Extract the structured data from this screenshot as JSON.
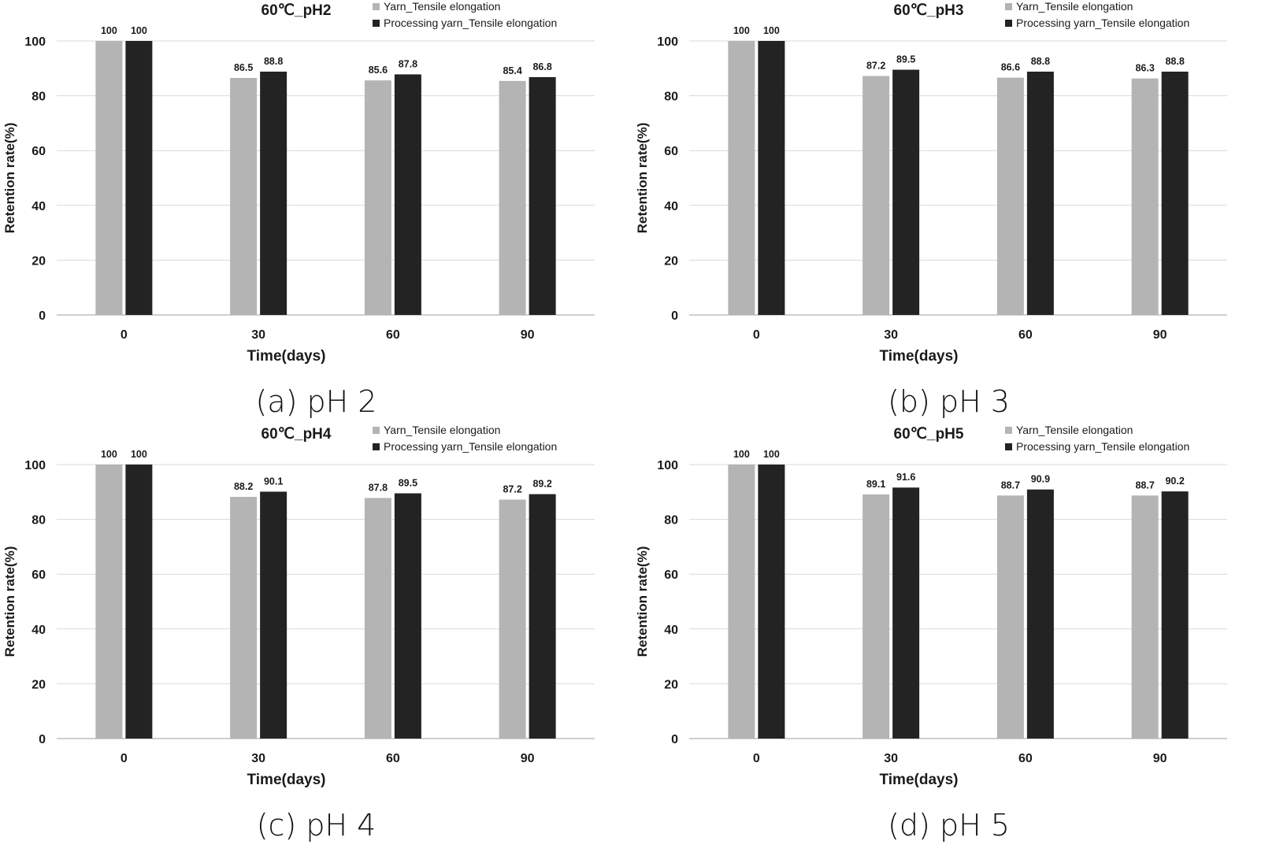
{
  "colors": {
    "yarn": "#b4b4b4",
    "processing": "#232323",
    "grid": "#d9d9d9",
    "axis": "#bfbfbf",
    "text": "#1a1a1a"
  },
  "chart_data": [
    {
      "type": "bar",
      "title": "60℃_pH2",
      "caption": "(a) pH 2",
      "xlabel": "Time(days)",
      "ylabel": "Retention rate(%)",
      "categories": [
        "0",
        "30",
        "60",
        "90"
      ],
      "ylim": [
        0,
        100
      ],
      "yticks": [
        "0",
        "20",
        "40",
        "60",
        "80",
        "100"
      ],
      "grid": true,
      "legend_position": "top-right",
      "series": [
        {
          "name": "Yarn_Tensile elongation",
          "values": [
            100,
            86.5,
            85.6,
            85.4
          ]
        },
        {
          "name": "Processing yarn_Tensile elongation",
          "values": [
            100,
            88.8,
            87.8,
            86.8
          ]
        }
      ]
    },
    {
      "type": "bar",
      "title": "60℃_pH3",
      "caption": "(b) pH 3",
      "xlabel": "Time(days)",
      "ylabel": "Retention rate(%)",
      "categories": [
        "0",
        "30",
        "60",
        "90"
      ],
      "ylim": [
        0,
        100
      ],
      "yticks": [
        "0",
        "20",
        "40",
        "60",
        "80",
        "100"
      ],
      "grid": true,
      "legend_position": "top-right",
      "series": [
        {
          "name": "Yarn_Tensile elongation",
          "values": [
            100,
            87.2,
            86.6,
            86.3
          ]
        },
        {
          "name": "Processing yarn_Tensile elongation",
          "values": [
            100,
            89.5,
            88.8,
            88.8
          ]
        }
      ]
    },
    {
      "type": "bar",
      "title": "60℃_pH4",
      "caption": "(c) pH 4",
      "xlabel": "Time(days)",
      "ylabel": "Retention rate(%)",
      "categories": [
        "0",
        "30",
        "60",
        "90"
      ],
      "ylim": [
        0,
        100
      ],
      "yticks": [
        "0",
        "20",
        "40",
        "60",
        "80",
        "100"
      ],
      "grid": true,
      "legend_position": "top-right",
      "series": [
        {
          "name": "Yarn_Tensile elongation",
          "values": [
            100,
            88.2,
            87.8,
            87.2
          ]
        },
        {
          "name": "Processing yarn_Tensile elongation",
          "values": [
            100,
            90.1,
            89.5,
            89.2
          ]
        }
      ]
    },
    {
      "type": "bar",
      "title": "60℃_pH5",
      "caption": "(d) pH 5",
      "xlabel": "Time(days)",
      "ylabel": "Retention rate(%)",
      "categories": [
        "0",
        "30",
        "60",
        "90"
      ],
      "ylim": [
        0,
        100
      ],
      "yticks": [
        "0",
        "20",
        "40",
        "60",
        "80",
        "100"
      ],
      "grid": true,
      "legend_position": "top-right",
      "series": [
        {
          "name": "Yarn_Tensile elongation",
          "values": [
            100,
            89.1,
            88.7,
            88.7
          ]
        },
        {
          "name": "Processing yarn_Tensile elongation",
          "values": [
            100,
            91.6,
            90.9,
            90.2
          ]
        }
      ]
    }
  ]
}
